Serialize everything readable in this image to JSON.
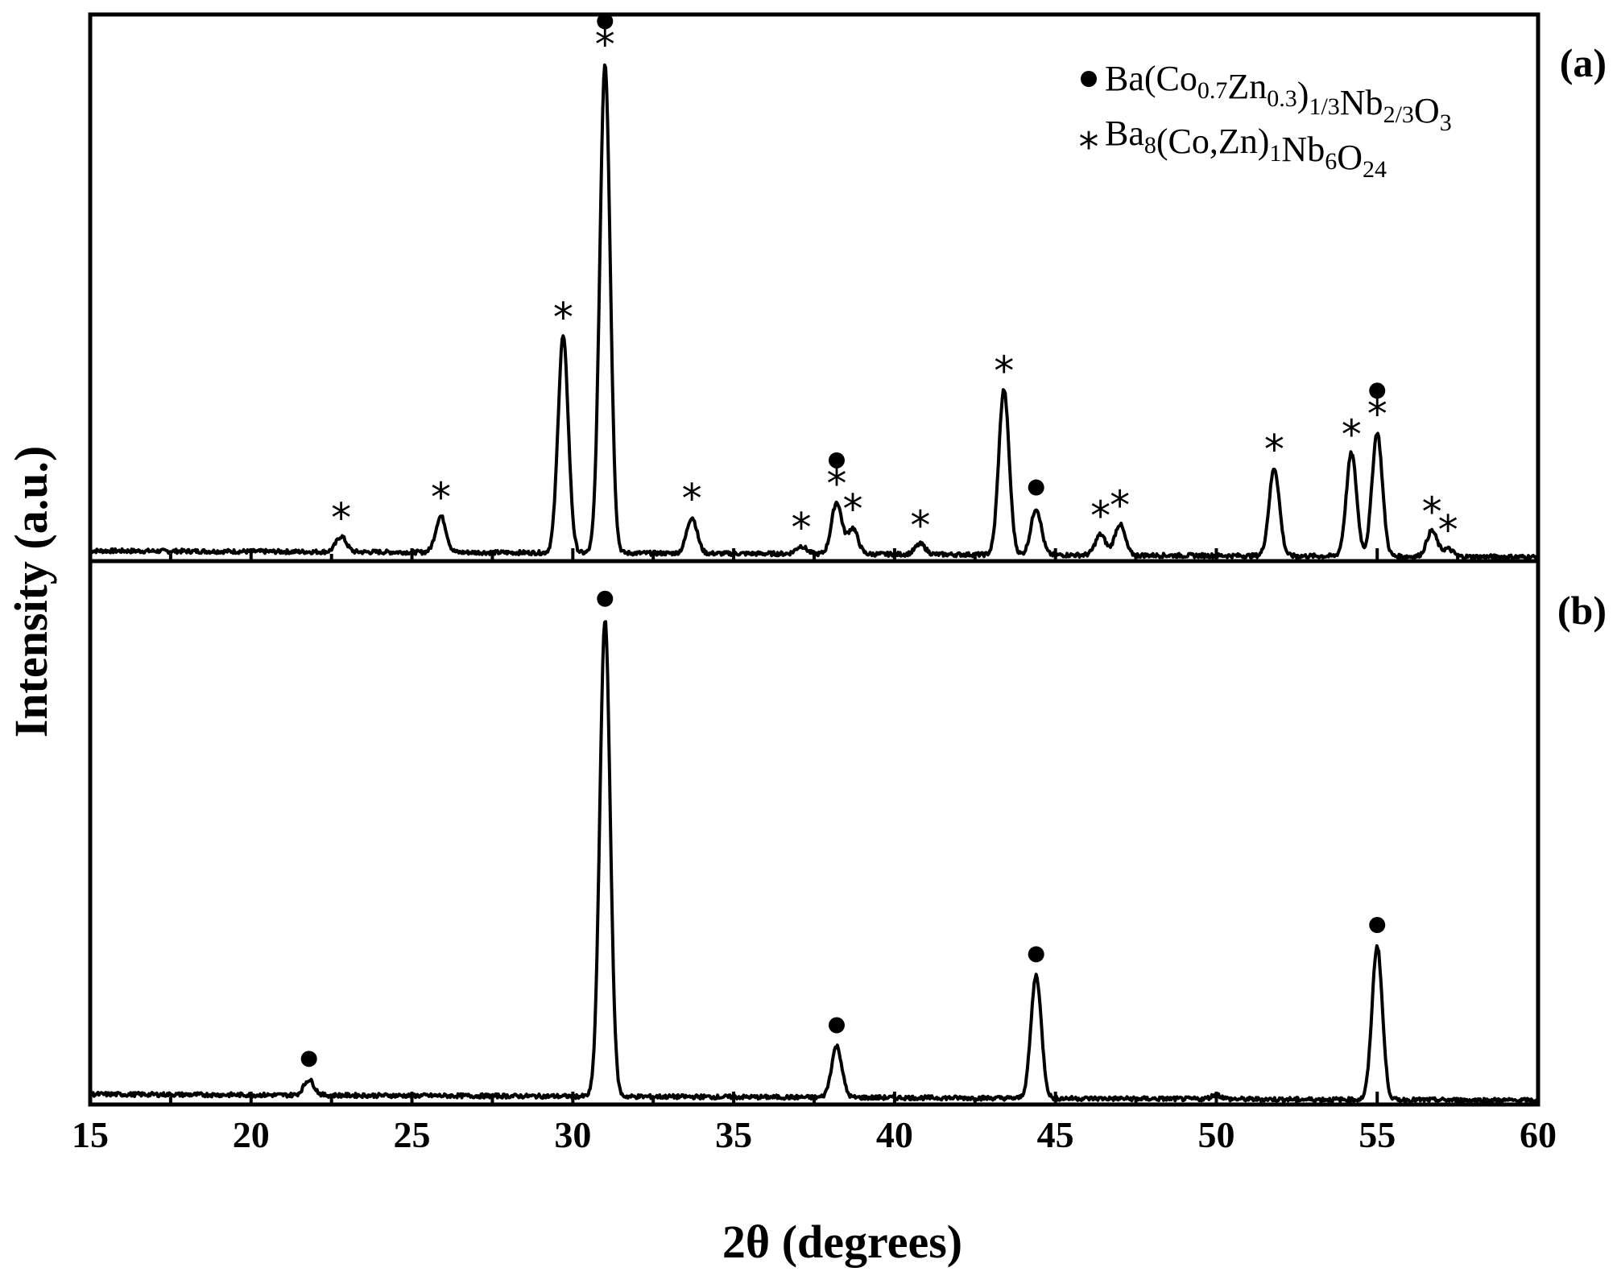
{
  "chart_data": {
    "type": "line",
    "xlabel": "2θ (degrees)",
    "ylabel": "Intensity (a.u.)",
    "xlim": [
      15,
      60
    ],
    "xticks": [
      "15",
      "20",
      "25",
      "30",
      "35",
      "40",
      "45",
      "50",
      "55",
      "60"
    ],
    "yticks": "none",
    "grid": false,
    "legend_position": "top-right",
    "legend": [
      {
        "marker": "circle",
        "parts": [
          [
            "Ba(Co",
            ""
          ],
          [
            "0.7",
            "sub"
          ],
          [
            "Zn",
            ""
          ],
          [
            "0.3",
            "sub"
          ],
          [
            ")",
            ""
          ],
          [
            "1/3",
            "sub"
          ],
          [
            "Nb",
            ""
          ],
          [
            "2/3",
            "sub"
          ],
          [
            "O",
            ""
          ],
          [
            "3",
            "sub"
          ]
        ]
      },
      {
        "marker": "star",
        "parts": [
          [
            "Ba",
            ""
          ],
          [
            "8",
            "sub"
          ],
          [
            "(Co,Zn)",
            ""
          ],
          [
            "1",
            "sub"
          ],
          [
            "Nb",
            ""
          ],
          [
            "6",
            "sub"
          ],
          [
            "O",
            ""
          ],
          [
            "24",
            "sub"
          ]
        ]
      }
    ],
    "panels": [
      {
        "label": "(a)",
        "baseline": 0.02,
        "ylim": [
          0,
          1.06
        ],
        "peaks": [
          {
            "x": 22.8,
            "y": 0.03
          },
          {
            "x": 25.9,
            "y": 0.07
          },
          {
            "x": 29.7,
            "y": 0.42
          },
          {
            "x": 31.0,
            "y": 0.95
          },
          {
            "x": 33.7,
            "y": 0.07
          },
          {
            "x": 37.1,
            "y": 0.015
          },
          {
            "x": 38.2,
            "y": 0.1
          },
          {
            "x": 38.7,
            "y": 0.05
          },
          {
            "x": 40.8,
            "y": 0.02
          },
          {
            "x": 43.4,
            "y": 0.32
          },
          {
            "x": 44.4,
            "y": 0.09
          },
          {
            "x": 46.4,
            "y": 0.04
          },
          {
            "x": 47.0,
            "y": 0.06
          },
          {
            "x": 51.8,
            "y": 0.17
          },
          {
            "x": 54.2,
            "y": 0.2
          },
          {
            "x": 55.0,
            "y": 0.24
          },
          {
            "x": 56.7,
            "y": 0.05
          },
          {
            "x": 57.2,
            "y": 0.015
          }
        ],
        "markers": [
          {
            "x": 22.8,
            "symbol": "star"
          },
          {
            "x": 25.9,
            "symbol": "star"
          },
          {
            "x": 29.7,
            "symbol": "star"
          },
          {
            "x": 31.0,
            "symbol": "star"
          },
          {
            "x": 31.0,
            "symbol": "circle",
            "stack": 1
          },
          {
            "x": 33.7,
            "symbol": "star"
          },
          {
            "x": 37.1,
            "symbol": "star"
          },
          {
            "x": 38.2,
            "symbol": "star"
          },
          {
            "x": 38.2,
            "symbol": "circle",
            "stack": 1
          },
          {
            "x": 38.7,
            "symbol": "star"
          },
          {
            "x": 40.8,
            "symbol": "star"
          },
          {
            "x": 43.4,
            "symbol": "star"
          },
          {
            "x": 44.4,
            "symbol": "circle"
          },
          {
            "x": 46.4,
            "symbol": "star"
          },
          {
            "x": 47.0,
            "symbol": "star"
          },
          {
            "x": 51.8,
            "symbol": "star"
          },
          {
            "x": 54.2,
            "symbol": "star"
          },
          {
            "x": 55.0,
            "symbol": "star"
          },
          {
            "x": 55.0,
            "symbol": "circle",
            "stack": 1
          },
          {
            "x": 56.7,
            "symbol": "star"
          },
          {
            "x": 57.2,
            "symbol": "star"
          }
        ]
      },
      {
        "label": "(b)",
        "baseline": 0.02,
        "ylim": [
          0,
          1.06
        ],
        "peaks": [
          {
            "x": 21.8,
            "y": 0.03
          },
          {
            "x": 31.0,
            "y": 0.93
          },
          {
            "x": 38.2,
            "y": 0.1
          },
          {
            "x": 44.4,
            "y": 0.24
          },
          {
            "x": 50.0,
            "y": 0.008
          },
          {
            "x": 55.0,
            "y": 0.3
          }
        ],
        "markers": [
          {
            "x": 21.8,
            "symbol": "circle"
          },
          {
            "x": 31.0,
            "symbol": "circle"
          },
          {
            "x": 38.2,
            "symbol": "circle"
          },
          {
            "x": 44.4,
            "symbol": "circle"
          },
          {
            "x": 55.0,
            "symbol": "circle"
          }
        ]
      }
    ]
  }
}
